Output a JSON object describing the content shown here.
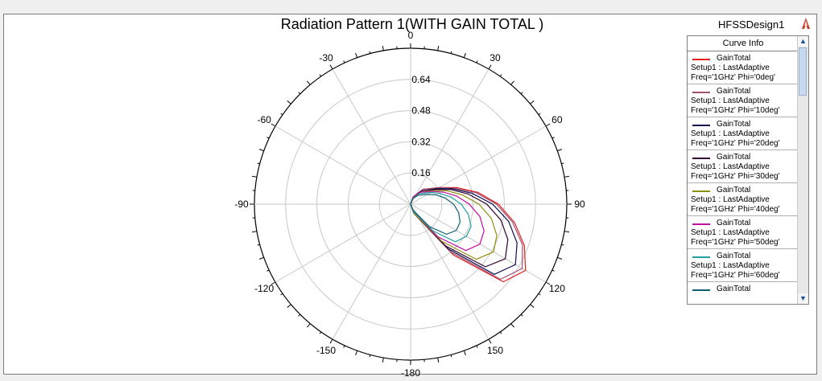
{
  "title": "Radiation Pattern 1(WITH GAIN TOTAL )",
  "design_name": "HFSSDesign1",
  "legend": {
    "header": "Curve Info",
    "entries": [
      {
        "name": "GainTotal",
        "line2": "Setup1 : LastAdaptive",
        "line3": "Freq='1GHz' Phi='0deg'",
        "color": "#e02020"
      },
      {
        "name": "GainTotal",
        "line2": "Setup1 : LastAdaptive",
        "line3": "Freq='1GHz' Phi='10deg'",
        "color": "#a05070"
      },
      {
        "name": "GainTotal",
        "line2": "Setup1 : LastAdaptive",
        "line3": "Freq='1GHz' Phi='20deg'",
        "color": "#101050"
      },
      {
        "name": "GainTotal",
        "line2": "Setup1 : LastAdaptive",
        "line3": "Freq='1GHz' Phi='30deg'",
        "color": "#300030"
      },
      {
        "name": "GainTotal",
        "line2": "Setup1 : LastAdaptive",
        "line3": "Freq='1GHz' Phi='40deg'",
        "color": "#909010"
      },
      {
        "name": "GainTotal",
        "line2": "Setup1 : LastAdaptive",
        "line3": "Freq='1GHz' Phi='50deg'",
        "color": "#c010a0"
      },
      {
        "name": "GainTotal",
        "line2": "Setup1 : LastAdaptive",
        "line3": "Freq='1GHz' Phi='60deg'",
        "color": "#20a0a0"
      },
      {
        "name": "GainTotal",
        "line2": "",
        "line3": "",
        "color": "#106070"
      }
    ]
  },
  "chart_data": {
    "type": "polar-line",
    "title": "Radiation Pattern 1(WITH GAIN TOTAL )",
    "angle_ticks": [
      0,
      30,
      60,
      90,
      120,
      150,
      -180,
      -150,
      -120,
      -90,
      -60,
      -30
    ],
    "radial_ticks": [
      0.16,
      0.32,
      0.48,
      0.64
    ],
    "rmax": 0.8,
    "theta_deg": [
      0,
      20,
      40,
      60,
      70,
      80,
      90,
      100,
      110,
      120,
      130,
      140,
      160,
      180
    ],
    "series": [
      {
        "name": "GainTotal Freq='1GHz' Phi='0deg'",
        "color": "#e02020",
        "r": [
          0.0,
          0.04,
          0.1,
          0.17,
          0.25,
          0.35,
          0.45,
          0.54,
          0.62,
          0.68,
          0.62,
          0.34,
          0.05,
          0.0
        ]
      },
      {
        "name": "GainTotal Freq='1GHz' Phi='10deg'",
        "color": "#a05070",
        "r": [
          0.0,
          0.04,
          0.1,
          0.17,
          0.24,
          0.34,
          0.44,
          0.53,
          0.61,
          0.66,
          0.6,
          0.32,
          0.05,
          0.0
        ]
      },
      {
        "name": "GainTotal Freq='1GHz' Phi='20deg'",
        "color": "#101050",
        "r": [
          0.0,
          0.04,
          0.09,
          0.16,
          0.23,
          0.32,
          0.42,
          0.51,
          0.58,
          0.62,
          0.56,
          0.3,
          0.05,
          0.0
        ]
      },
      {
        "name": "GainTotal Freq='1GHz' Phi='30deg'",
        "color": "#300030",
        "r": [
          0.0,
          0.04,
          0.09,
          0.15,
          0.22,
          0.3,
          0.39,
          0.47,
          0.53,
          0.56,
          0.5,
          0.28,
          0.05,
          0.0
        ]
      },
      {
        "name": "GainTotal Freq='1GHz' Phi='40deg'",
        "color": "#909010",
        "r": [
          0.0,
          0.04,
          0.08,
          0.14,
          0.2,
          0.27,
          0.35,
          0.42,
          0.47,
          0.49,
          0.44,
          0.25,
          0.05,
          0.0
        ]
      },
      {
        "name": "GainTotal Freq='1GHz' Phi='50deg'",
        "color": "#c010a0",
        "r": [
          0.0,
          0.04,
          0.08,
          0.13,
          0.18,
          0.24,
          0.3,
          0.36,
          0.4,
          0.41,
          0.37,
          0.22,
          0.04,
          0.0
        ]
      },
      {
        "name": "GainTotal Freq='1GHz' Phi='60deg'",
        "color": "#20a0a0",
        "r": [
          0.0,
          0.03,
          0.07,
          0.12,
          0.16,
          0.21,
          0.26,
          0.3,
          0.33,
          0.33,
          0.3,
          0.18,
          0.04,
          0.0
        ]
      },
      {
        "name": "GainTotal",
        "color": "#106070",
        "r": [
          0.0,
          0.03,
          0.06,
          0.1,
          0.14,
          0.18,
          0.22,
          0.25,
          0.27,
          0.27,
          0.24,
          0.15,
          0.03,
          0.0
        ]
      }
    ]
  }
}
